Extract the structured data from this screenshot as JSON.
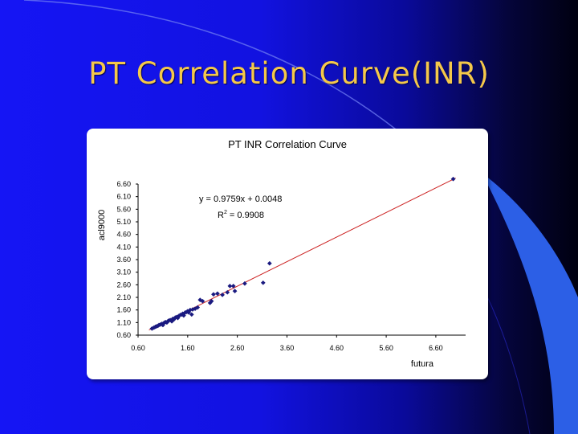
{
  "slide": {
    "title": "PT Correlation Curve(INR)"
  },
  "colors": {
    "title": "#f4c84a",
    "points": "#1a1a80",
    "trendline": "#cc2222"
  },
  "chart_data": {
    "type": "scatter",
    "title": "PT INR Correlation Curve",
    "xlabel": "futura",
    "ylabel": "acl9000",
    "xlim": [
      0.6,
      7.2
    ],
    "ylim": [
      0.6,
      6.6
    ],
    "x_ticks": [
      "0.60",
      "1.60",
      "2.60",
      "3.60",
      "4.60",
      "5.60",
      "6.60"
    ],
    "y_ticks": [
      "0.60",
      "1.10",
      "1.60",
      "2.10",
      "2.60",
      "3.10",
      "3.60",
      "4.10",
      "4.60",
      "5.10",
      "5.60",
      "6.10",
      "6.60"
    ],
    "grid": false,
    "legend": "none",
    "trendline": {
      "equation": "y = 0.9759x + 0.0048",
      "r2_prefix": "R",
      "r2_exp": "2",
      "r2_value": " = 0.9908",
      "slope": 0.9759,
      "intercept": 0.0048
    },
    "series": [
      {
        "points": [
          [
            0.88,
            0.86
          ],
          [
            0.92,
            0.9
          ],
          [
            0.95,
            0.93
          ],
          [
            0.97,
            0.95
          ],
          [
            1.0,
            0.97
          ],
          [
            1.02,
            1.0
          ],
          [
            1.05,
            1.02
          ],
          [
            1.08,
            1.05
          ],
          [
            1.1,
            1.0
          ],
          [
            1.12,
            1.08
          ],
          [
            1.15,
            1.12
          ],
          [
            1.18,
            1.1
          ],
          [
            1.2,
            1.15
          ],
          [
            1.22,
            1.18
          ],
          [
            1.25,
            1.2
          ],
          [
            1.28,
            1.15
          ],
          [
            1.3,
            1.25
          ],
          [
            1.32,
            1.22
          ],
          [
            1.35,
            1.3
          ],
          [
            1.38,
            1.32
          ],
          [
            1.4,
            1.28
          ],
          [
            1.42,
            1.36
          ],
          [
            1.45,
            1.4
          ],
          [
            1.48,
            1.42
          ],
          [
            1.5,
            1.45
          ],
          [
            1.52,
            1.38
          ],
          [
            1.55,
            1.5
          ],
          [
            1.58,
            1.52
          ],
          [
            1.6,
            1.55
          ],
          [
            1.62,
            1.5
          ],
          [
            1.65,
            1.6
          ],
          [
            1.68,
            1.42
          ],
          [
            1.7,
            1.62
          ],
          [
            1.75,
            1.65
          ],
          [
            1.8,
            1.7
          ],
          [
            1.85,
            2.0
          ],
          [
            1.9,
            1.95
          ],
          [
            2.05,
            1.88
          ],
          [
            2.08,
            1.95
          ],
          [
            2.12,
            2.22
          ],
          [
            2.2,
            2.25
          ],
          [
            2.3,
            2.2
          ],
          [
            2.4,
            2.3
          ],
          [
            2.45,
            2.55
          ],
          [
            2.52,
            2.55
          ],
          [
            2.55,
            2.35
          ],
          [
            2.75,
            2.65
          ],
          [
            3.12,
            2.68
          ],
          [
            3.25,
            3.45
          ],
          [
            6.95,
            6.8
          ]
        ]
      }
    ]
  }
}
